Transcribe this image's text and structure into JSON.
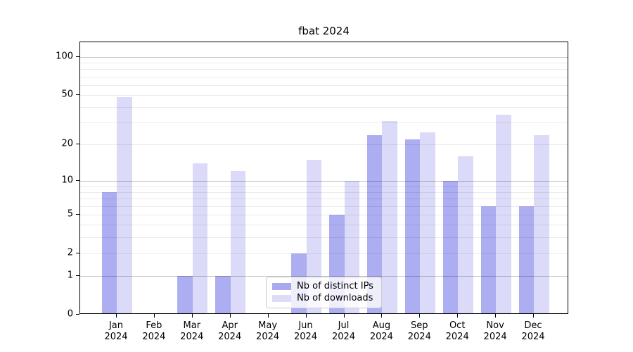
{
  "title": {
    "text": "fbat 2024"
  },
  "axes": {
    "y_ticks": [
      {
        "label": "100",
        "value": 100
      },
      {
        "label": "50",
        "value": 50
      },
      {
        "label": "20",
        "value": 20
      },
      {
        "label": "10",
        "value": 10
      },
      {
        "label": "5",
        "value": 5
      },
      {
        "label": "2",
        "value": 2
      },
      {
        "label": "1",
        "value": 1
      },
      {
        "label": "0",
        "value": 0
      }
    ],
    "x_ticks": [
      {
        "line1": "Jan",
        "line2": "2024"
      },
      {
        "line1": "Feb",
        "line2": "2024"
      },
      {
        "line1": "Mar",
        "line2": "2024"
      },
      {
        "line1": "Apr",
        "line2": "2024"
      },
      {
        "line1": "May",
        "line2": "2024"
      },
      {
        "line1": "Jun",
        "line2": "2024"
      },
      {
        "line1": "Jul",
        "line2": "2024"
      },
      {
        "line1": "Aug",
        "line2": "2024"
      },
      {
        "line1": "Sep",
        "line2": "2024"
      },
      {
        "line1": "Oct",
        "line2": "2024"
      },
      {
        "line1": "Nov",
        "line2": "2024"
      },
      {
        "line1": "Dec",
        "line2": "2024"
      }
    ]
  },
  "legend": {
    "items": [
      {
        "label": "Nb of distinct IPs",
        "swatch": "#a9a9f0"
      },
      {
        "label": "Nb of downloads",
        "swatch": "#dcdcf8"
      }
    ]
  },
  "chart_data": {
    "type": "bar",
    "title": "fbat 2024",
    "categories": [
      "Jan 2024",
      "Feb 2024",
      "Mar 2024",
      "Apr 2024",
      "May 2024",
      "Jun 2024",
      "Jul 2024",
      "Aug 2024",
      "Sep 2024",
      "Oct 2024",
      "Nov 2024",
      "Dec 2024"
    ],
    "series": [
      {
        "name": "Nb of distinct IPs",
        "color": "rgba(122,122,232,0.62)",
        "values": [
          8,
          0,
          1,
          1,
          0,
          2,
          5,
          24,
          22,
          10,
          6,
          6
        ]
      },
      {
        "name": "Nb of downloads",
        "color": "rgba(160,160,238,0.38)",
        "values": [
          48,
          0,
          14,
          12,
          0,
          15,
          10,
          31,
          25,
          16,
          35,
          24
        ]
      }
    ],
    "xlabel": "",
    "ylabel": "",
    "yscale": "log1p",
    "ylim": [
      0,
      130
    ],
    "y_tick_values": [
      0,
      1,
      2,
      5,
      10,
      20,
      50,
      100
    ],
    "grid": {
      "on": true,
      "major": [
        1,
        10,
        100
      ],
      "minor": [
        2,
        3,
        4,
        5,
        6,
        7,
        8,
        9,
        20,
        30,
        40,
        50,
        60,
        70,
        80,
        90
      ]
    },
    "legend_position": "lower center"
  }
}
